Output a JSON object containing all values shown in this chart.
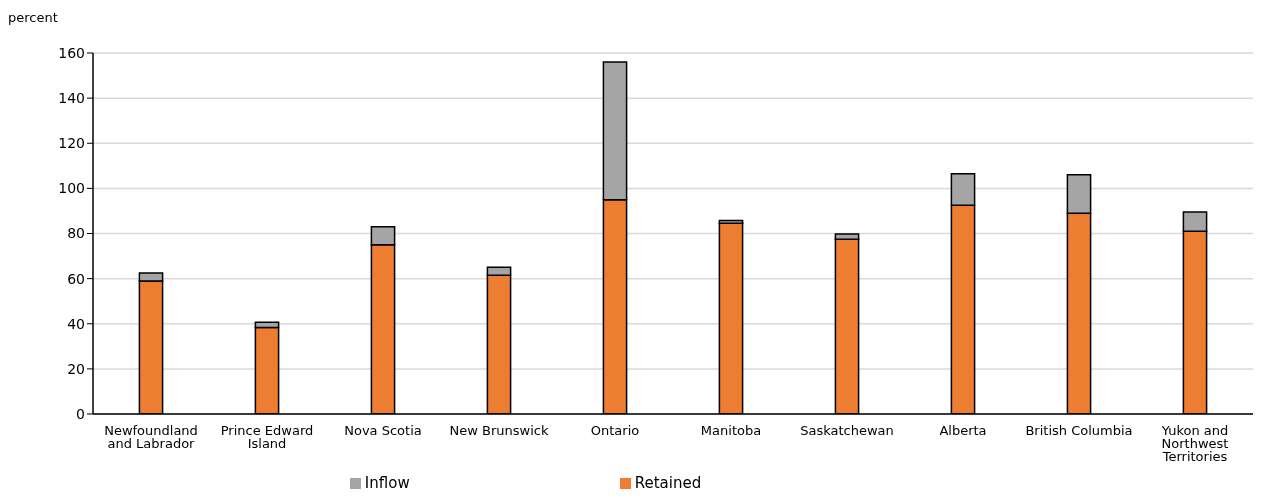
{
  "chart_data": {
    "type": "bar",
    "ylabel": "percent",
    "stacked": true,
    "categories": [
      "Newfoundland and Labrador",
      "Prince Edward Island",
      "Nova Scotia",
      "New Brunswick",
      "Ontario",
      "Manitoba",
      "Saskatchewan",
      "Alberta",
      "British Columbia",
      "Yukon and Northwest Territories"
    ],
    "series": [
      {
        "name": "Retained",
        "color": "#ed7d31",
        "values": [
          59,
          38.3,
          75,
          61.5,
          95,
          84.5,
          77.5,
          92.5,
          89,
          81
        ]
      },
      {
        "name": "Inflow",
        "color": "#a5a5a5",
        "values": [
          3.5,
          2.4,
          8,
          3.5,
          61,
          1.3,
          2.3,
          14,
          17,
          8.5
        ]
      }
    ],
    "ylim": [
      0,
      160
    ],
    "yticks": [
      0,
      20,
      40,
      60,
      80,
      100,
      120,
      140,
      160
    ],
    "grid": "y",
    "legend": "bottom"
  }
}
